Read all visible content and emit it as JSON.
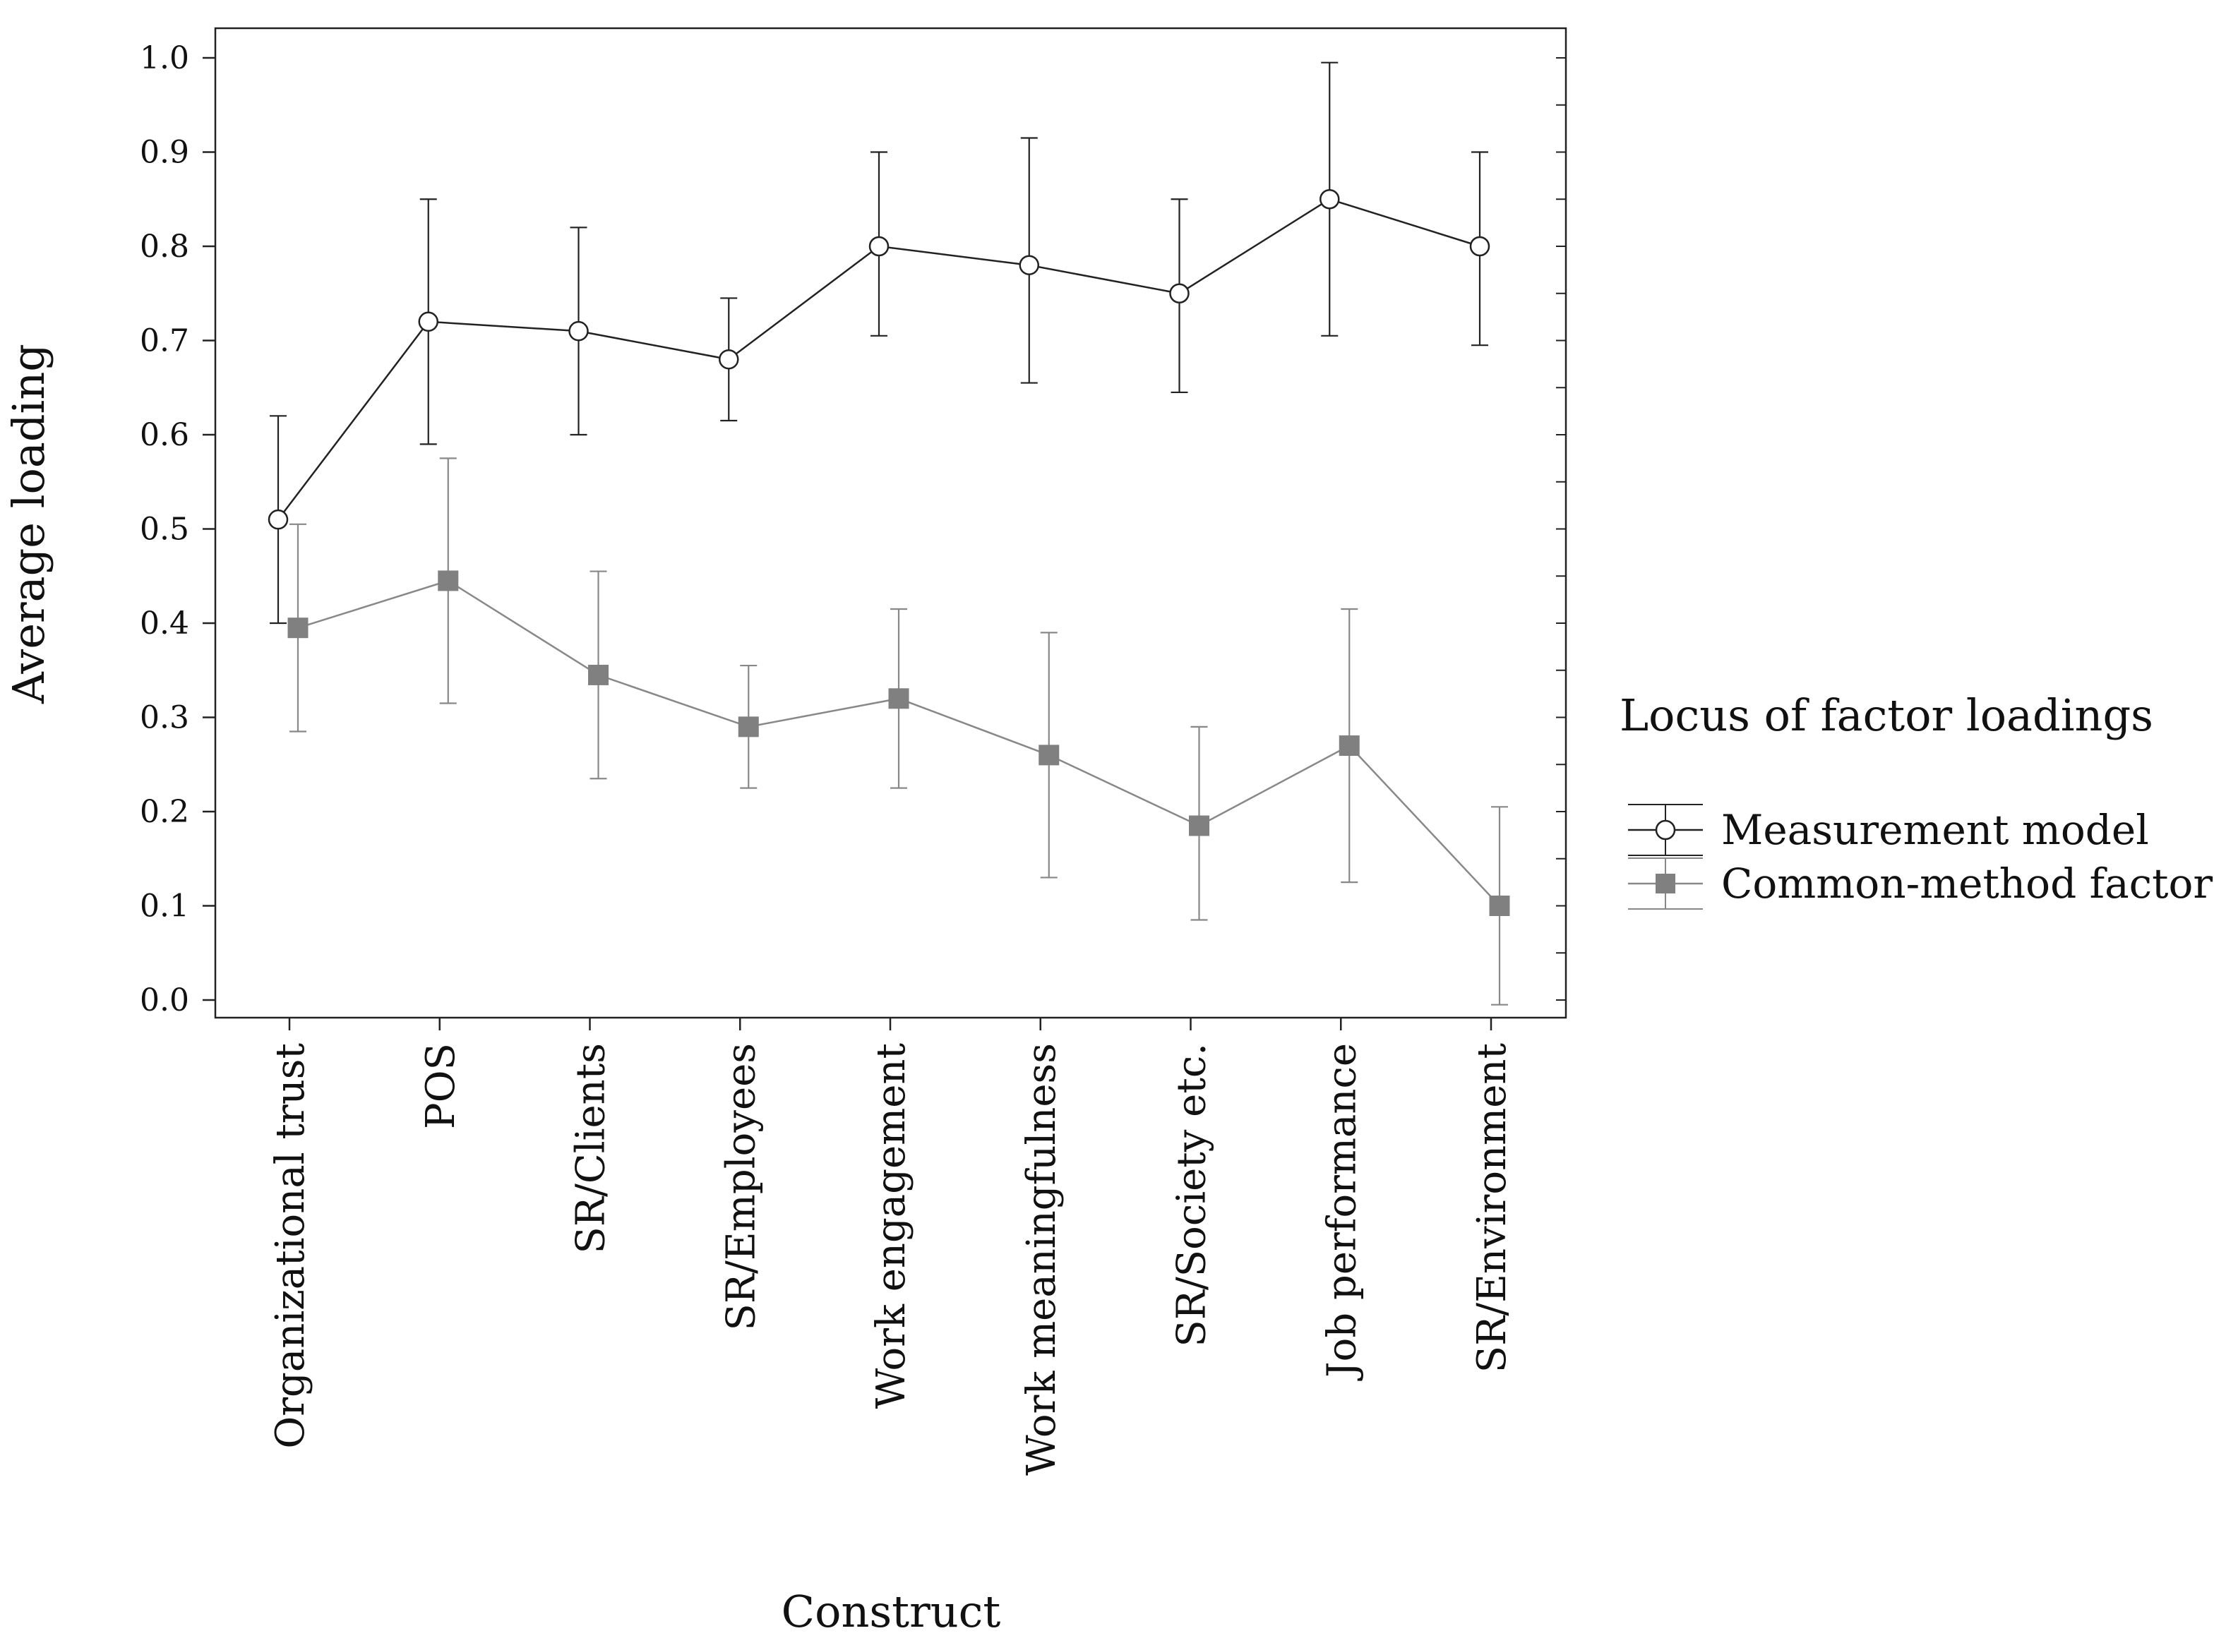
{
  "chart_data": {
    "type": "line",
    "title": "",
    "xlabel": "Construct",
    "ylabel": "Average loading",
    "ylim": [
      0.0,
      1.0
    ],
    "yticks": [
      "0.0",
      "0.1",
      "0.2",
      "0.3",
      "0.4",
      "0.5",
      "0.6",
      "0.7",
      "0.8",
      "0.9",
      "1.0"
    ],
    "grid": false,
    "categories": [
      "Organizational trust",
      "POS",
      "SR/Clients",
      "SR/Employees",
      "Work engagement",
      "Work meaningfulness",
      "SR/Society etc.",
      "Job performance",
      "SR/Environment"
    ],
    "legend": {
      "title": "Locus of factor loadings",
      "placement": "right"
    },
    "series": [
      {
        "name": "Measurement model",
        "marker": "circle",
        "color": "#222222",
        "marker_fill": "#ffffff",
        "values": [
          0.51,
          0.72,
          0.71,
          0.68,
          0.8,
          0.78,
          0.75,
          0.85,
          0.8
        ],
        "lower": [
          0.4,
          0.59,
          0.6,
          0.615,
          0.705,
          0.655,
          0.645,
          0.705,
          0.695
        ],
        "upper": [
          0.62,
          0.85,
          0.82,
          0.745,
          0.9,
          0.915,
          0.85,
          0.995,
          0.9
        ]
      },
      {
        "name": "Common-method factor",
        "marker": "square",
        "color": "#888888",
        "marker_fill": "#808080",
        "values": [
          0.395,
          0.445,
          0.345,
          0.29,
          0.32,
          0.26,
          0.185,
          0.27,
          0.1
        ],
        "lower": [
          0.285,
          0.315,
          0.235,
          0.225,
          0.225,
          0.13,
          0.085,
          0.125,
          -0.005
        ],
        "upper": [
          0.505,
          0.575,
          0.455,
          0.355,
          0.415,
          0.39,
          0.29,
          0.415,
          0.205
        ]
      }
    ]
  }
}
